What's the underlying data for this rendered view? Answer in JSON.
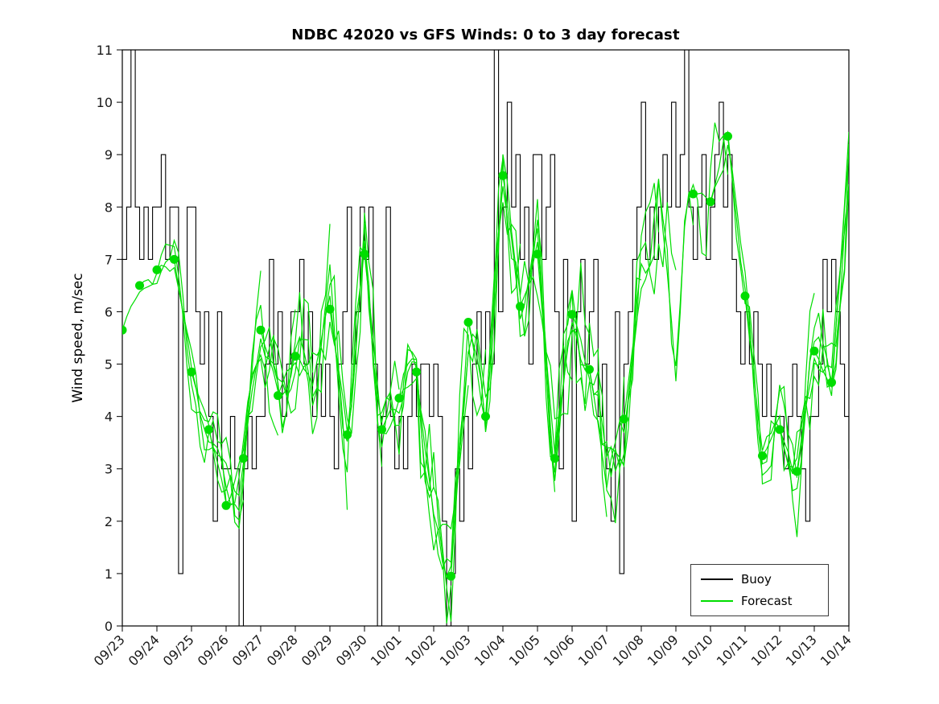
{
  "title": "NDBC 42020 vs GFS Winds: 0 to 3 day forecast",
  "ylabel": "Wind speed, m/sec",
  "colors": {
    "buoy": "#000000",
    "forecast": "#00dd00",
    "background": "#ffffff",
    "axis": "#000000"
  },
  "legend": {
    "position": "bottom-right",
    "items": [
      {
        "label": "Buoy",
        "color": "#000000"
      },
      {
        "label": "Forecast",
        "color": "#00dd00"
      }
    ]
  },
  "chart_data": {
    "type": "line",
    "title": "NDBC 42020 vs GFS Winds: 0 to 3 day forecast",
    "xlabel": "",
    "ylabel": "Wind speed, m/sec",
    "ylim": [
      0,
      11
    ],
    "yticks": [
      0,
      1,
      2,
      3,
      4,
      5,
      6,
      7,
      8,
      9,
      10,
      11
    ],
    "x_range_days": [
      0,
      21
    ],
    "xtick_positions_days": [
      0,
      1,
      2,
      3,
      4,
      5,
      6,
      7,
      8,
      9,
      10,
      11,
      12,
      13,
      14,
      15,
      16,
      17,
      18,
      19,
      20,
      21
    ],
    "xtick_labels": [
      "09/23",
      "09/24",
      "09/25",
      "09/26",
      "09/27",
      "09/28",
      "09/29",
      "09/30",
      "10/01",
      "10/02",
      "10/03",
      "10/04",
      "10/05",
      "10/06",
      "10/07",
      "10/08",
      "10/09",
      "10/10",
      "10/11",
      "10/12",
      "10/13",
      "10/14"
    ],
    "grid": false,
    "legend_entries": [
      "Buoy",
      "Forecast"
    ],
    "series": [
      {
        "name": "Buoy",
        "color": "#000000",
        "style": "stairs",
        "start_day": 0,
        "step_days": 0.125,
        "unit": "m/sec",
        "values": [
          7,
          8,
          11,
          8,
          7,
          8,
          7,
          8,
          8,
          9,
          7,
          8,
          8,
          1,
          6,
          8,
          8,
          6,
          5,
          6,
          4,
          2,
          6,
          3,
          3,
          4,
          3,
          0,
          3,
          4,
          3,
          4,
          4,
          5,
          7,
          5,
          6,
          4,
          5,
          6,
          6,
          7,
          5,
          6,
          4,
          5,
          4,
          5,
          4,
          3,
          5,
          6,
          8,
          5,
          6,
          8,
          7,
          8,
          5,
          0,
          4,
          8,
          4,
          3,
          4,
          3,
          4,
          5,
          4,
          5,
          5,
          4,
          5,
          4,
          2,
          0,
          1,
          3,
          2,
          4,
          3,
          5,
          6,
          5,
          6,
          5,
          11,
          6,
          8,
          10,
          8,
          9,
          7,
          8,
          5,
          9,
          9,
          7,
          8,
          9,
          6,
          3,
          7,
          6,
          2,
          6,
          7,
          5,
          6,
          7,
          4,
          5,
          3,
          2,
          6,
          1,
          5,
          6,
          7,
          8,
          10,
          7,
          8,
          7,
          8,
          9,
          8,
          10,
          8,
          9,
          11,
          8,
          7,
          8,
          9,
          7,
          8,
          9,
          10,
          8,
          9,
          7,
          6,
          5,
          6,
          5,
          6,
          5,
          4,
          5,
          4,
          4,
          4,
          3,
          4,
          5,
          4,
          3,
          2,
          4,
          4,
          5,
          7,
          6,
          7,
          6,
          5,
          4,
          3
        ]
      },
      {
        "name": "Forecast",
        "color": "#00dd00",
        "style": "multi-run-line",
        "run_length_days": 3,
        "marker": "filled-circle",
        "marker_at_run_start": true,
        "analysis_points": [
          [
            0,
            5.65
          ],
          [
            0.5,
            6.5
          ],
          [
            1,
            6.8
          ],
          [
            1.5,
            7.0
          ],
          [
            2,
            4.85
          ],
          [
            2.5,
            3.75
          ],
          [
            3,
            2.3
          ],
          [
            3.5,
            3.2
          ],
          [
            4,
            5.65
          ],
          [
            4.5,
            4.4
          ],
          [
            5,
            5.15
          ],
          [
            5.5,
            4.75
          ],
          [
            6,
            6.05
          ],
          [
            6.5,
            3.65
          ],
          [
            7,
            7.1
          ],
          [
            7.5,
            3.75
          ],
          [
            8,
            4.35
          ],
          [
            8.5,
            4.85
          ],
          [
            9,
            2.0
          ],
          [
            9.5,
            0.95
          ],
          [
            10,
            5.8
          ],
          [
            10.5,
            4.0
          ],
          [
            11,
            8.6
          ],
          [
            11.5,
            6.1
          ],
          [
            12,
            7.1
          ],
          [
            12.5,
            3.2
          ],
          [
            13,
            5.95
          ],
          [
            13.5,
            4.9
          ],
          [
            14,
            2.8
          ],
          [
            14.5,
            3.95
          ],
          [
            15,
            6.5
          ],
          [
            15.5,
            8.0
          ],
          [
            16,
            5.5
          ],
          [
            16.5,
            8.25
          ],
          [
            17,
            8.1
          ],
          [
            17.5,
            9.35
          ],
          [
            18,
            6.3
          ],
          [
            18.5,
            3.25
          ],
          [
            19,
            3.75
          ],
          [
            19.5,
            2.95
          ],
          [
            20,
            5.25
          ],
          [
            20.5,
            4.65
          ],
          [
            21,
            8.9
          ]
        ],
        "run_start_days": [
          0,
          0.5,
          1,
          1.5,
          2,
          2.5,
          3,
          3.5,
          4,
          4.5,
          5,
          6,
          6.5,
          7,
          7.5,
          8,
          8.5,
          9.5,
          10,
          10.5,
          11,
          11.5,
          12,
          12.5,
          13,
          13.5,
          14.5,
          16.5,
          17,
          17.5,
          18,
          18.5,
          19,
          19.5,
          20,
          20.5
        ]
      }
    ]
  }
}
